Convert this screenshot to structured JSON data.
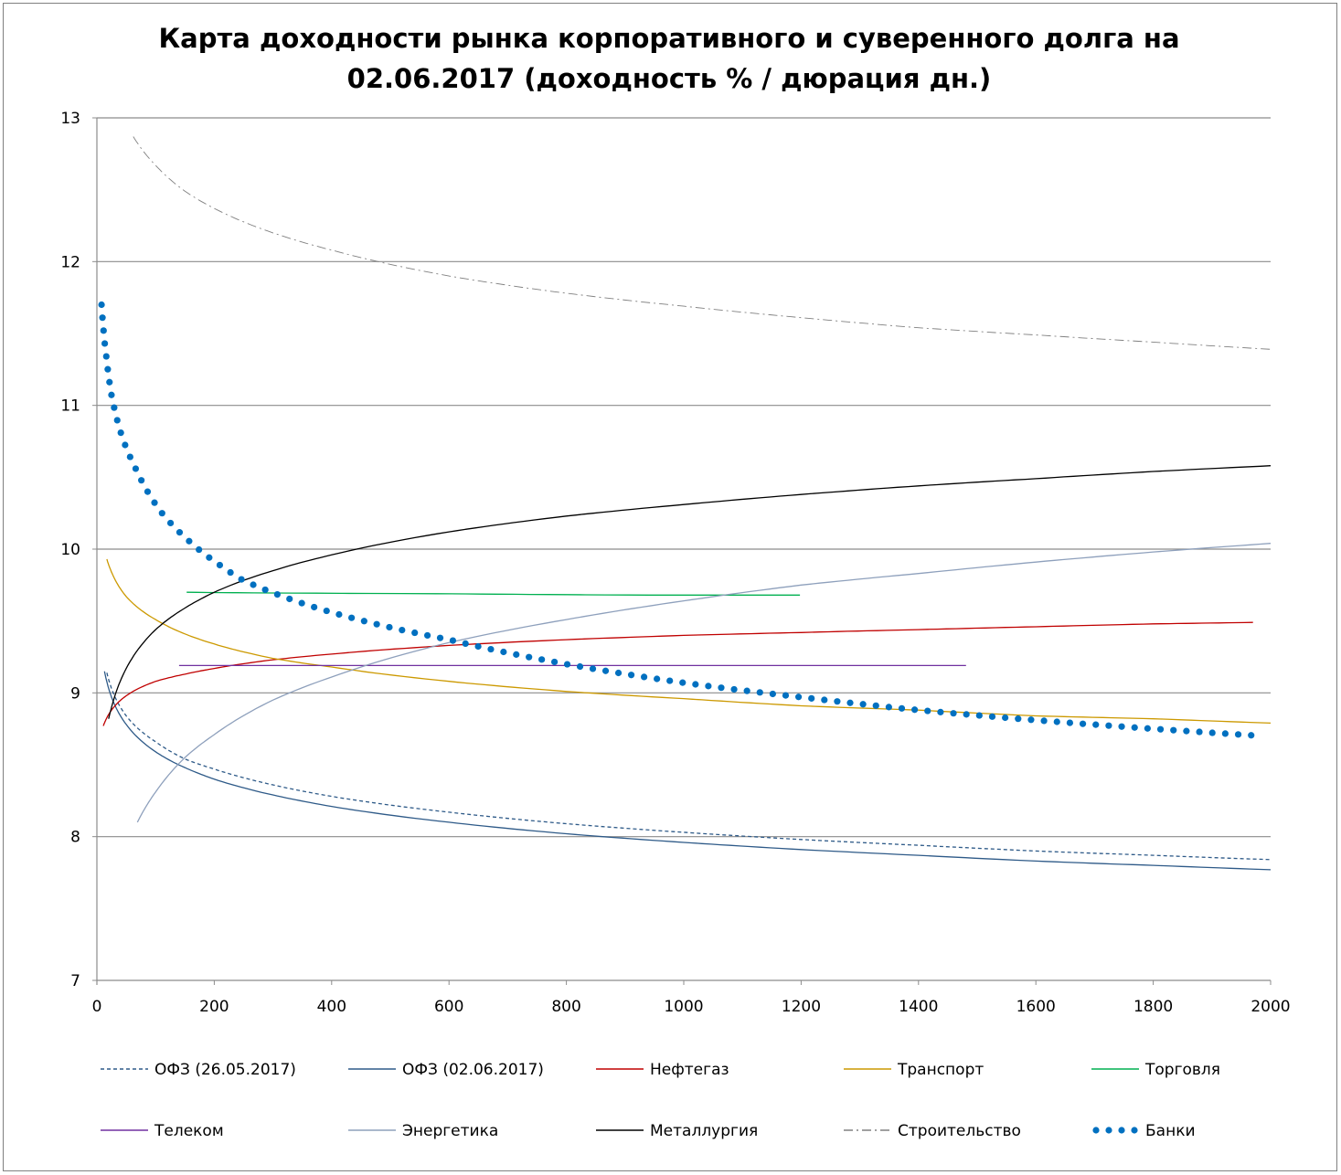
{
  "chart_data": {
    "type": "line",
    "title": [
      "Карта доходности рынка корпоративного и суверенного долга на",
      "02.06.2017 (доходность % / дюрация дн.)"
    ],
    "xlabel": "",
    "ylabel": "",
    "xlim": [
      0,
      2000
    ],
    "ylim": [
      7,
      13
    ],
    "xticks": [
      0,
      200,
      400,
      600,
      800,
      1000,
      1200,
      1400,
      1600,
      1800,
      2000
    ],
    "yticks": [
      7,
      8,
      9,
      10,
      11,
      12,
      13
    ],
    "grid": "horizontal",
    "legend_position": "bottom",
    "series": [
      {
        "name": "ОФЗ (26.05.2017)",
        "color": "#2E5A88",
        "style": "dotted",
        "points": [
          [
            17,
            9.14
          ],
          [
            25,
            9.03
          ],
          [
            50,
            8.84
          ],
          [
            100,
            8.66
          ],
          [
            150,
            8.54
          ],
          [
            200,
            8.47
          ],
          [
            300,
            8.36
          ],
          [
            400,
            8.28
          ],
          [
            600,
            8.17
          ],
          [
            800,
            8.09
          ],
          [
            1000,
            8.03
          ],
          [
            1200,
            7.98
          ],
          [
            1400,
            7.94
          ],
          [
            1600,
            7.9
          ],
          [
            1800,
            7.87
          ],
          [
            2000,
            7.84
          ]
        ]
      },
      {
        "name": "ОФЗ (02.06.2017)",
        "color": "#2E5A88",
        "style": "solid",
        "points": [
          [
            13,
            9.15
          ],
          [
            25,
            8.97
          ],
          [
            50,
            8.78
          ],
          [
            100,
            8.59
          ],
          [
            150,
            8.48
          ],
          [
            200,
            8.4
          ],
          [
            300,
            8.29
          ],
          [
            400,
            8.21
          ],
          [
            600,
            8.1
          ],
          [
            800,
            8.02
          ],
          [
            1000,
            7.96
          ],
          [
            1200,
            7.91
          ],
          [
            1400,
            7.87
          ],
          [
            1600,
            7.83
          ],
          [
            1800,
            7.8
          ],
          [
            2000,
            7.77
          ]
        ]
      },
      {
        "name": "Нефтегаз",
        "color": "#C00000",
        "style": "solid",
        "points": [
          [
            11,
            8.77
          ],
          [
            15,
            8.81
          ],
          [
            25,
            8.88
          ],
          [
            50,
            8.98
          ],
          [
            100,
            9.08
          ],
          [
            150,
            9.13
          ],
          [
            200,
            9.17
          ],
          [
            300,
            9.23
          ],
          [
            400,
            9.27
          ],
          [
            600,
            9.33
          ],
          [
            800,
            9.37
          ],
          [
            1000,
            9.4
          ],
          [
            1200,
            9.42
          ],
          [
            1400,
            9.44
          ],
          [
            1600,
            9.46
          ],
          [
            1800,
            9.48
          ],
          [
            1970,
            9.49
          ]
        ]
      },
      {
        "name": "Транспорт",
        "color": "#CC9900",
        "style": "solid",
        "points": [
          [
            17,
            9.93
          ],
          [
            25,
            9.84
          ],
          [
            50,
            9.67
          ],
          [
            100,
            9.51
          ],
          [
            150,
            9.41
          ],
          [
            200,
            9.34
          ],
          [
            300,
            9.24
          ],
          [
            400,
            9.18
          ],
          [
            600,
            9.08
          ],
          [
            800,
            9.01
          ],
          [
            1000,
            8.96
          ],
          [
            1200,
            8.91
          ],
          [
            1400,
            8.88
          ],
          [
            1600,
            8.84
          ],
          [
            1800,
            8.82
          ],
          [
            2000,
            8.79
          ]
        ]
      },
      {
        "name": "Торговля",
        "color": "#00B050",
        "style": "solid",
        "points": [
          [
            153,
            9.7
          ],
          [
            580,
            9.69
          ],
          [
            940,
            9.68
          ],
          [
            1198,
            9.68
          ]
        ]
      },
      {
        "name": "Телеком",
        "color": "#7030A0",
        "style": "solid",
        "points": [
          [
            140,
            9.19
          ],
          [
            1481,
            9.19
          ]
        ]
      },
      {
        "name": "Энергетика",
        "color": "#8EA0BC",
        "style": "solid",
        "points": [
          [
            69,
            8.1
          ],
          [
            100,
            8.31
          ],
          [
            150,
            8.55
          ],
          [
            200,
            8.71
          ],
          [
            300,
            8.95
          ],
          [
            400,
            9.11
          ],
          [
            600,
            9.35
          ],
          [
            800,
            9.51
          ],
          [
            1000,
            9.64
          ],
          [
            1200,
            9.75
          ],
          [
            1400,
            9.83
          ],
          [
            1600,
            9.91
          ],
          [
            1800,
            9.98
          ],
          [
            2000,
            10.04
          ]
        ]
      },
      {
        "name": "Металлургия",
        "color": "#000000",
        "style": "solid",
        "points": [
          [
            20,
            8.82
          ],
          [
            25,
            8.9
          ],
          [
            50,
            9.17
          ],
          [
            100,
            9.44
          ],
          [
            150,
            9.59
          ],
          [
            200,
            9.7
          ],
          [
            300,
            9.85
          ],
          [
            400,
            9.96
          ],
          [
            600,
            10.12
          ],
          [
            800,
            10.23
          ],
          [
            1000,
            10.31
          ],
          [
            1200,
            10.38
          ],
          [
            1400,
            10.44
          ],
          [
            1600,
            10.49
          ],
          [
            1800,
            10.54
          ],
          [
            2000,
            10.58
          ]
        ]
      },
      {
        "name": "Строительство",
        "color": "#808080",
        "style": "dashdot",
        "points": [
          [
            62,
            12.87
          ],
          [
            100,
            12.67
          ],
          [
            150,
            12.49
          ],
          [
            200,
            12.37
          ],
          [
            300,
            12.2
          ],
          [
            400,
            12.08
          ],
          [
            600,
            11.9
          ],
          [
            800,
            11.78
          ],
          [
            1000,
            11.69
          ],
          [
            1200,
            11.61
          ],
          [
            1400,
            11.54
          ],
          [
            1600,
            11.49
          ],
          [
            1800,
            11.44
          ],
          [
            2000,
            11.39
          ]
        ]
      },
      {
        "name": "Банки",
        "color": "#0070C0",
        "style": "dots",
        "points": [
          [
            8,
            11.7
          ],
          [
            16,
            11.34
          ],
          [
            25,
            11.07
          ],
          [
            40,
            10.82
          ],
          [
            65,
            10.57
          ],
          [
            111,
            10.25
          ],
          [
            156,
            10.06
          ],
          [
            209,
            9.89
          ],
          [
            246,
            9.79
          ],
          [
            400,
            9.56
          ],
          [
            600,
            9.37
          ],
          [
            800,
            9.2
          ],
          [
            1000,
            9.07
          ],
          [
            1200,
            8.97
          ],
          [
            1400,
            8.88
          ],
          [
            1600,
            8.81
          ],
          [
            1800,
            8.75
          ],
          [
            1987,
            8.7
          ]
        ]
      }
    ]
  }
}
